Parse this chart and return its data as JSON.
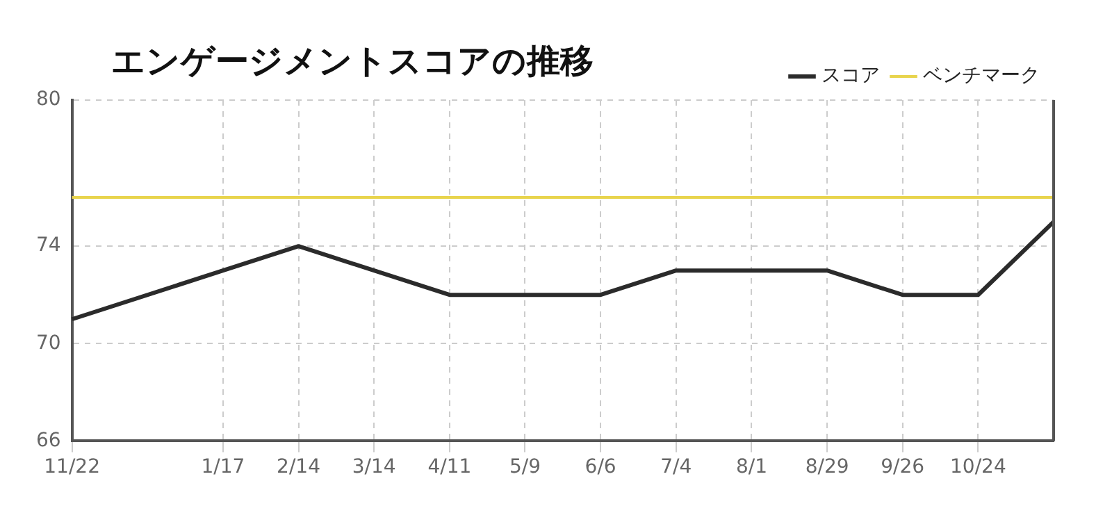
{
  "chart_data": {
    "type": "line",
    "title": "エンゲージメントスコアの推移",
    "categories": [
      "11/22",
      null,
      "1/17",
      "2/14",
      "3/14",
      "4/11",
      "5/9",
      "6/6",
      "7/4",
      "8/1",
      "8/29",
      "9/26",
      "10/24",
      null
    ],
    "series": [
      {
        "name": "スコア",
        "color": "#2b2b2b",
        "values": [
          71,
          null,
          73,
          74,
          73,
          72,
          72,
          72,
          73,
          73,
          73,
          72,
          72,
          75
        ]
      },
      {
        "name": "ベンチマーク",
        "color": "#e8d44d",
        "values": [
          76,
          76,
          76,
          76,
          76,
          76,
          76,
          76,
          76,
          76,
          76,
          76,
          76,
          76
        ]
      }
    ],
    "ylim": [
      66,
      80
    ],
    "yticks": [
      66,
      70,
      74,
      80
    ],
    "grid": true,
    "legend": "top right",
    "marker": "none",
    "line_style": "solid"
  }
}
